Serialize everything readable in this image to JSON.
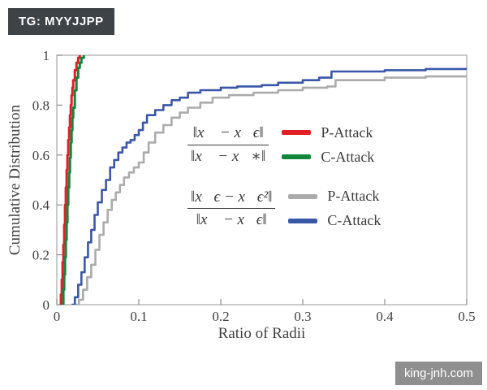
{
  "page": {
    "tag_label": "TG: MYYJJPP",
    "watermark_label": "king-jnh.com"
  },
  "chart_data": {
    "type": "line",
    "subtype": "empirical-cdf-step",
    "title": "",
    "xlabel": "Ratio of Radii",
    "ylabel": "Cumulative Distribution",
    "xlim": [
      0,
      0.5
    ],
    "ylim": [
      0,
      1
    ],
    "xticks": [
      0,
      0.1,
      0.2,
      0.3,
      0.4,
      0.5
    ],
    "yticks": [
      0,
      0.2,
      0.4,
      0.6,
      0.8,
      1
    ],
    "grid": false,
    "legend_position": "center",
    "series": [
      {
        "name": "P-Attack ‖x⃗ − x⃗ϵ‖ / ‖x⃗ − x⃗∗‖",
        "color": "#e01f26",
        "width": 3,
        "points": [
          [
            0.004,
            0
          ],
          [
            0.005,
            0.04
          ],
          [
            0.006,
            0.1
          ],
          [
            0.007,
            0.17
          ],
          [
            0.008,
            0.24
          ],
          [
            0.009,
            0.32
          ],
          [
            0.01,
            0.4
          ],
          [
            0.011,
            0.47
          ],
          [
            0.012,
            0.54
          ],
          [
            0.013,
            0.6
          ],
          [
            0.014,
            0.66
          ],
          [
            0.015,
            0.71
          ],
          [
            0.016,
            0.76
          ],
          [
            0.017,
            0.8
          ],
          [
            0.018,
            0.84
          ],
          [
            0.019,
            0.87
          ],
          [
            0.02,
            0.9
          ],
          [
            0.022,
            0.94
          ],
          [
            0.024,
            0.97
          ],
          [
            0.026,
            0.99
          ],
          [
            0.028,
            1.0
          ]
        ]
      },
      {
        "name": "C-Attack ‖x⃗ − x⃗ϵ‖ / ‖x⃗ − x⃗∗‖",
        "color": "#12863c",
        "width": 3,
        "points": [
          [
            0.006,
            0
          ],
          [
            0.008,
            0.06
          ],
          [
            0.009,
            0.12
          ],
          [
            0.01,
            0.19
          ],
          [
            0.011,
            0.26
          ],
          [
            0.012,
            0.33
          ],
          [
            0.013,
            0.4
          ],
          [
            0.014,
            0.47
          ],
          [
            0.015,
            0.53
          ],
          [
            0.016,
            0.59
          ],
          [
            0.017,
            0.65
          ],
          [
            0.018,
            0.7
          ],
          [
            0.019,
            0.75
          ],
          [
            0.02,
            0.79
          ],
          [
            0.022,
            0.86
          ],
          [
            0.024,
            0.91
          ],
          [
            0.026,
            0.95
          ],
          [
            0.028,
            0.97
          ],
          [
            0.03,
            0.99
          ],
          [
            0.033,
            1.0
          ]
        ]
      },
      {
        "name": "P-Attack ‖x⃗ϵ − x⃗ϵ²‖ / ‖x⃗ − x⃗ϵ‖",
        "color": "#ababab",
        "width": 2.6,
        "points": [
          [
            0.022,
            0
          ],
          [
            0.027,
            0.02
          ],
          [
            0.032,
            0.06
          ],
          [
            0.037,
            0.11
          ],
          [
            0.042,
            0.16
          ],
          [
            0.047,
            0.22
          ],
          [
            0.052,
            0.28
          ],
          [
            0.057,
            0.33
          ],
          [
            0.062,
            0.38
          ],
          [
            0.067,
            0.42
          ],
          [
            0.072,
            0.45
          ],
          [
            0.077,
            0.48
          ],
          [
            0.082,
            0.51
          ],
          [
            0.088,
            0.53
          ],
          [
            0.094,
            0.55
          ],
          [
            0.1,
            0.57
          ],
          [
            0.106,
            0.61
          ],
          [
            0.112,
            0.65
          ],
          [
            0.12,
            0.69
          ],
          [
            0.13,
            0.72
          ],
          [
            0.14,
            0.75
          ],
          [
            0.15,
            0.77
          ],
          [
            0.16,
            0.79
          ],
          [
            0.175,
            0.81
          ],
          [
            0.19,
            0.83
          ],
          [
            0.21,
            0.84
          ],
          [
            0.24,
            0.85
          ],
          [
            0.27,
            0.86
          ],
          [
            0.3,
            0.87
          ],
          [
            0.33,
            0.875
          ],
          [
            0.34,
            0.9
          ],
          [
            0.4,
            0.91
          ],
          [
            0.45,
            0.915
          ],
          [
            0.5,
            0.92
          ]
        ]
      },
      {
        "name": "C-Attack ‖x⃗ϵ − x⃗ϵ²‖ / ‖x⃗ − x⃗ϵ‖",
        "color": "#3a57a7",
        "width": 2.6,
        "points": [
          [
            0.018,
            0
          ],
          [
            0.022,
            0.03
          ],
          [
            0.026,
            0.08
          ],
          [
            0.03,
            0.13
          ],
          [
            0.034,
            0.19
          ],
          [
            0.038,
            0.25
          ],
          [
            0.042,
            0.3
          ],
          [
            0.046,
            0.36
          ],
          [
            0.05,
            0.41
          ],
          [
            0.055,
            0.46
          ],
          [
            0.06,
            0.5
          ],
          [
            0.065,
            0.55
          ],
          [
            0.07,
            0.58
          ],
          [
            0.075,
            0.61
          ],
          [
            0.08,
            0.63
          ],
          [
            0.085,
            0.65
          ],
          [
            0.09,
            0.66
          ],
          [
            0.095,
            0.68
          ],
          [
            0.1,
            0.7
          ],
          [
            0.105,
            0.73
          ],
          [
            0.11,
            0.76
          ],
          [
            0.12,
            0.78
          ],
          [
            0.13,
            0.8
          ],
          [
            0.14,
            0.82
          ],
          [
            0.15,
            0.83
          ],
          [
            0.16,
            0.85
          ],
          [
            0.175,
            0.86
          ],
          [
            0.2,
            0.87
          ],
          [
            0.22,
            0.875
          ],
          [
            0.25,
            0.88
          ],
          [
            0.27,
            0.89
          ],
          [
            0.3,
            0.9
          ],
          [
            0.32,
            0.91
          ],
          [
            0.335,
            0.935
          ],
          [
            0.4,
            0.94
          ],
          [
            0.45,
            0.945
          ],
          [
            0.5,
            0.95
          ]
        ]
      }
    ],
    "legend": {
      "groups": [
        {
          "numerator": "‖x⃗ − x⃗ϵ‖",
          "denominator": "‖x⃗ − x⃗∗‖",
          "entries": [
            {
              "label": "P-Attack",
              "color": "#e01f26"
            },
            {
              "label": "C-Attack",
              "color": "#12863c"
            }
          ]
        },
        {
          "numerator": "‖x⃗ϵ − x⃗ϵ²‖",
          "denominator": "‖x⃗ − x⃗ϵ‖",
          "entries": [
            {
              "label": "P-Attack",
              "color": "#ababab"
            },
            {
              "label": "C-Attack",
              "color": "#3a57a7"
            }
          ]
        }
      ]
    }
  }
}
